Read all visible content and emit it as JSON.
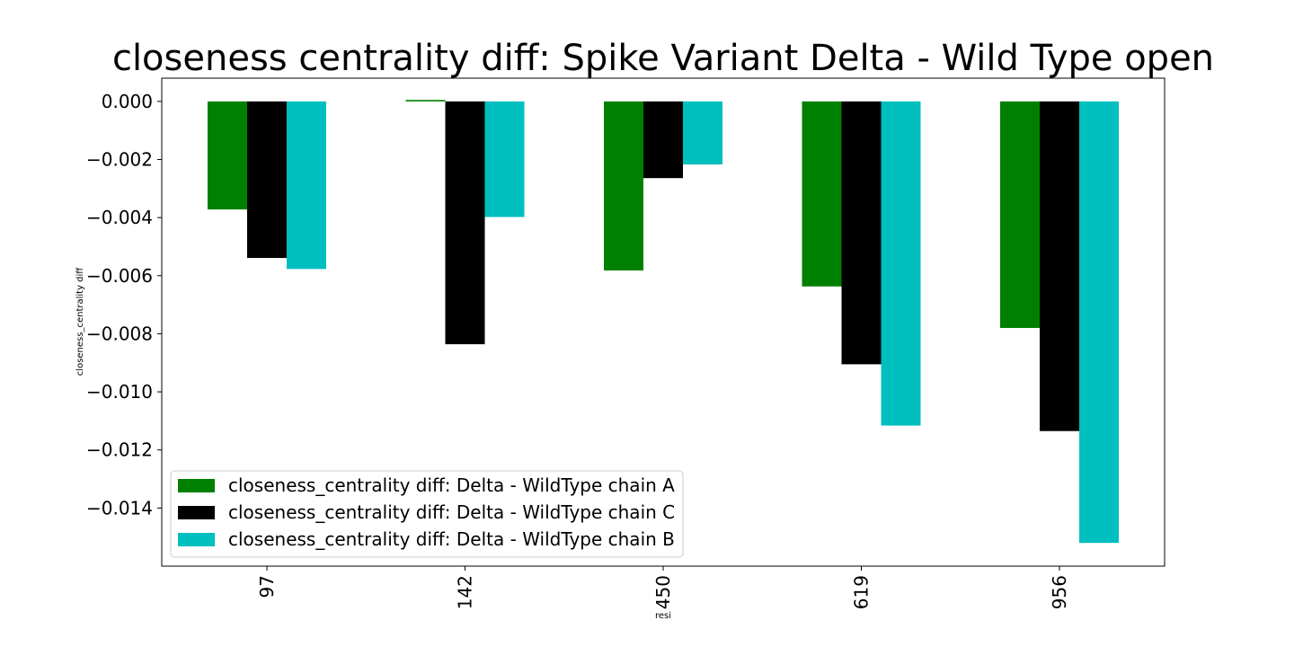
{
  "chart_data": {
    "type": "bar",
    "title": "closeness centrality diff: Spike Variant Delta - Wild Type open",
    "xlabel": "resi",
    "ylabel": "closeness_centrality diff",
    "categories": [
      "97",
      "142",
      "450",
      "619",
      "956"
    ],
    "series": [
      {
        "name": "closeness_centrality diff: Delta - WildType chain A",
        "color": "#008000",
        "values": [
          -0.00372,
          5e-05,
          -0.00582,
          -0.00637,
          -0.0078
        ]
      },
      {
        "name": "closeness_centrality diff: Delta - WildType chain C",
        "color": "#000000",
        "values": [
          -0.00539,
          -0.00836,
          -0.00264,
          -0.00905,
          -0.01135
        ]
      },
      {
        "name": "closeness_centrality diff: Delta - WildType chain B",
        "color": "#00bfbf",
        "values": [
          -0.00577,
          -0.00398,
          -0.00217,
          -0.01116,
          -0.0152
        ]
      }
    ],
    "ylim": [
      -0.016,
      0.0008
    ],
    "yticks": [
      0.0,
      -0.002,
      -0.004,
      -0.006,
      -0.008,
      -0.01,
      -0.012,
      -0.014
    ],
    "ytick_labels": [
      "0.000",
      "−0.002",
      "−0.004",
      "−0.006",
      "−0.008",
      "−0.010",
      "−0.012",
      "−0.014"
    ],
    "grid": false,
    "legend_position": "lower-left"
  }
}
